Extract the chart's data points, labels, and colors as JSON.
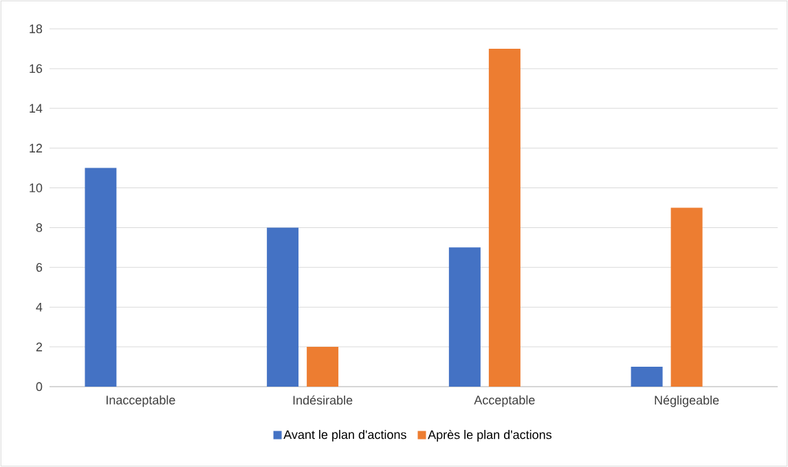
{
  "chart_data": {
    "type": "bar",
    "categories": [
      "Inacceptable",
      "Indésirable",
      "Acceptable",
      "Négligeable"
    ],
    "series": [
      {
        "name": "Avant le plan d'actions",
        "color": "#4472c4",
        "values": [
          11,
          8,
          7,
          1
        ]
      },
      {
        "name": "Après le plan d'actions",
        "color": "#ed7d31",
        "values": [
          0,
          2,
          17,
          9
        ]
      }
    ],
    "ylim": [
      0,
      18
    ],
    "yticks": [
      0,
      2,
      4,
      6,
      8,
      10,
      12,
      14,
      16,
      18
    ],
    "grid": "y",
    "legend": "bottom"
  }
}
